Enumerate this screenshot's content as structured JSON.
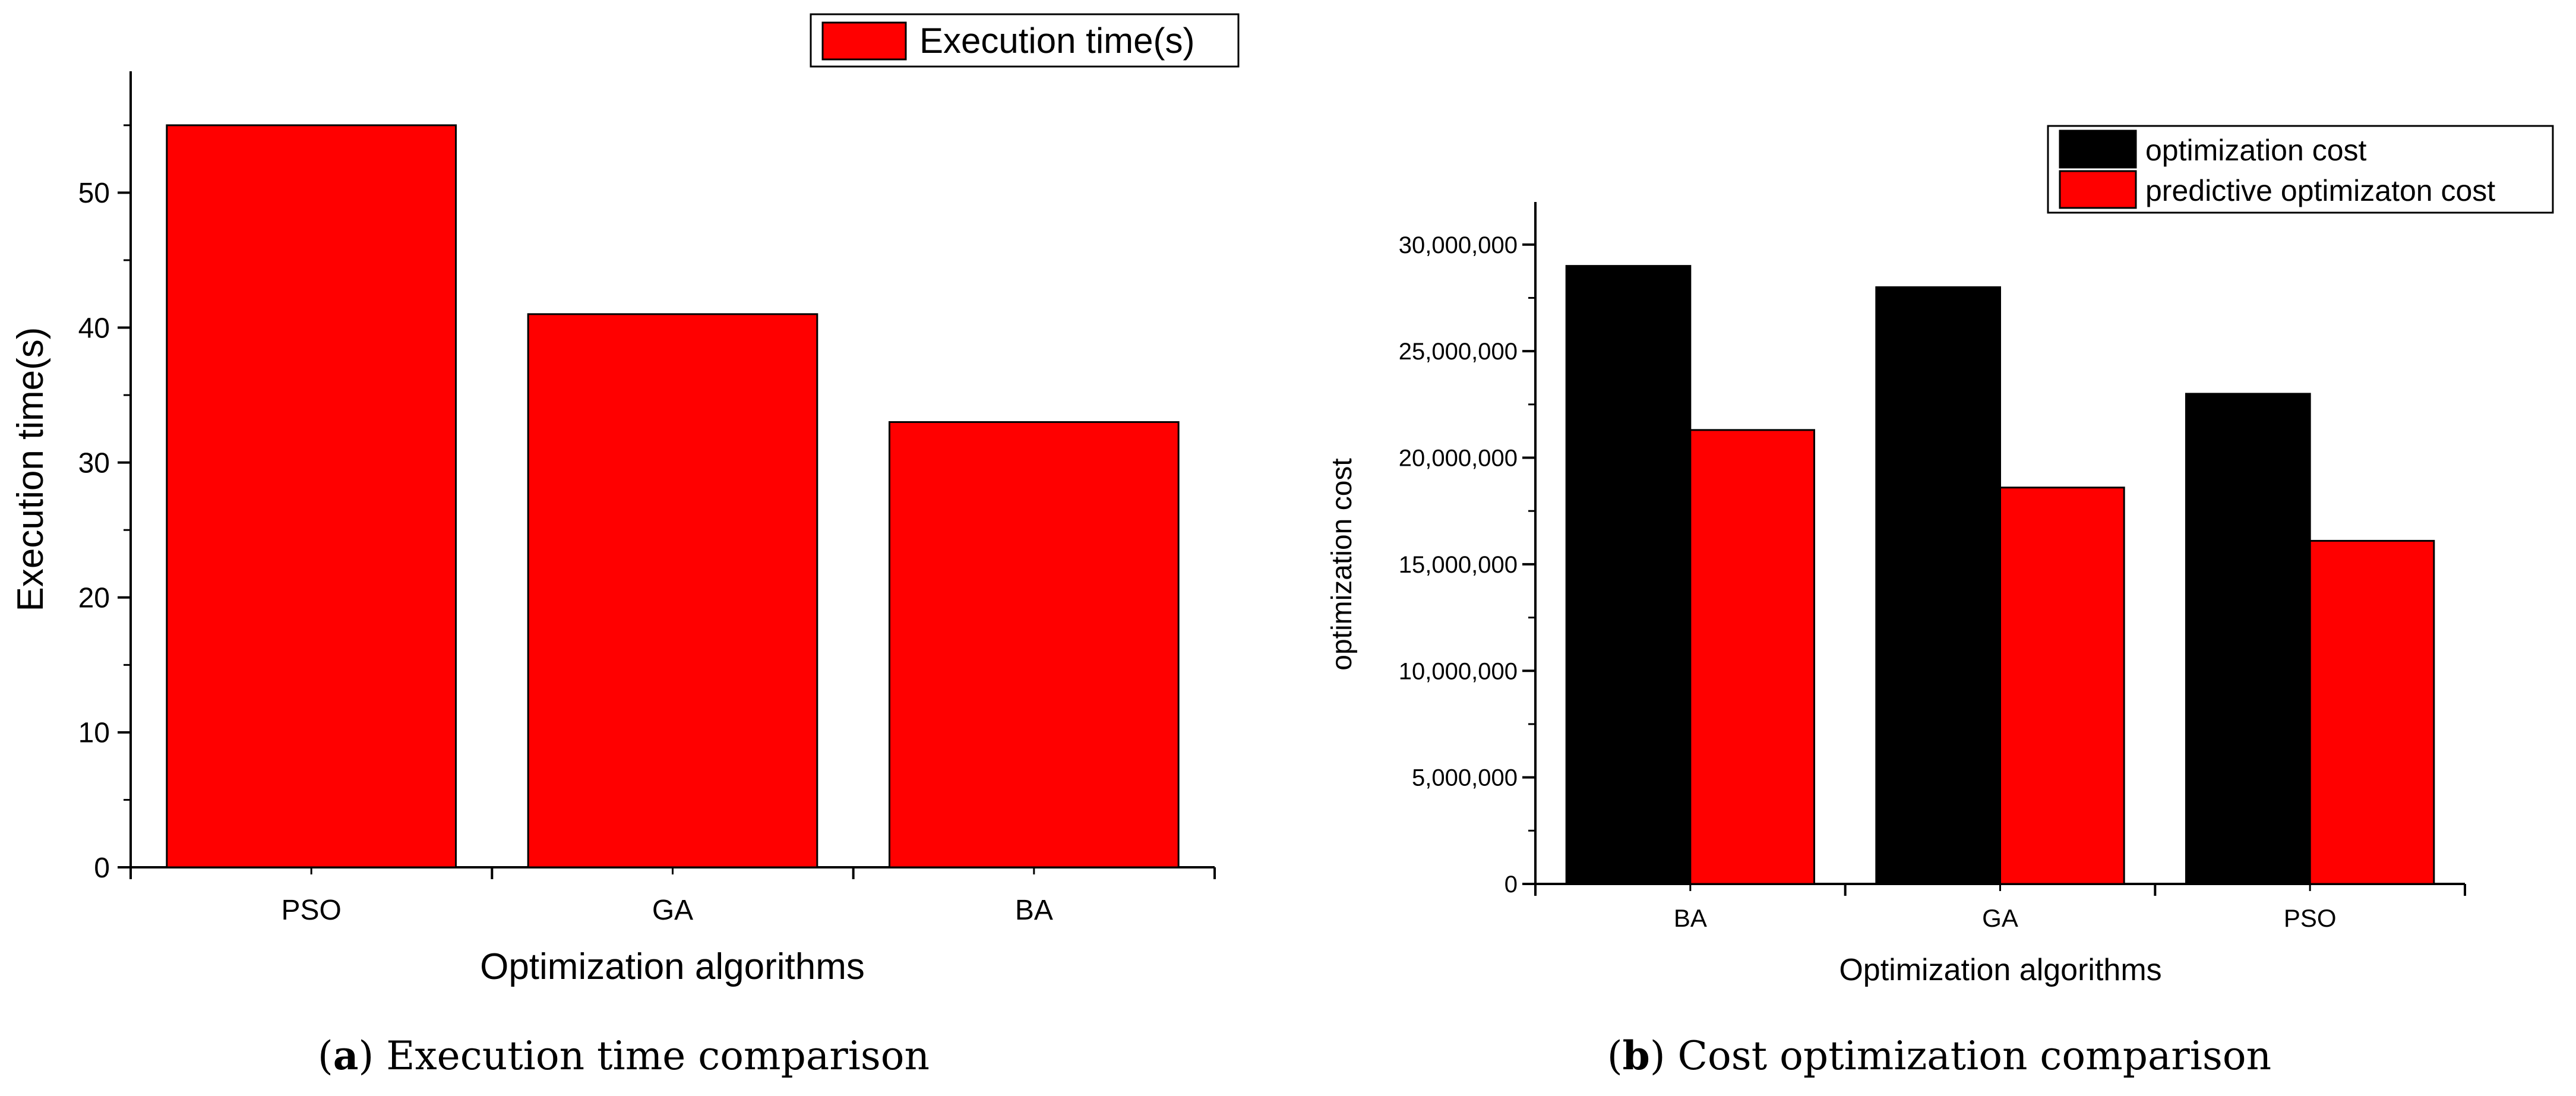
{
  "chart_data": [
    {
      "type": "bar",
      "caption_letter": "a",
      "caption_text": " Execution time comparison",
      "xlabel": "Optimization algorithms",
      "ylabel": "Execution time(s)",
      "ylim": [
        0,
        59
      ],
      "yticks": [
        0,
        10,
        20,
        30,
        40,
        50
      ],
      "ytick_labels": [
        "0",
        "10",
        "20",
        "30",
        "40",
        "50"
      ],
      "categories": [
        "PSO",
        "GA",
        "BA"
      ],
      "series": [
        {
          "name": "Execution time(s)",
          "color": "#ff0000",
          "values": [
            55,
            41,
            33
          ]
        }
      ],
      "legend_position": "top-right",
      "grid": false
    },
    {
      "type": "bar",
      "caption_letter": "b",
      "caption_text": " Cost optimization comparison",
      "xlabel": "Optimization algorithms",
      "ylabel": "optimization cost",
      "ylim": [
        0,
        32000000
      ],
      "yticks": [
        0,
        5000000,
        10000000,
        15000000,
        20000000,
        25000000,
        30000000
      ],
      "ytick_labels": [
        "0",
        "5,000,000",
        "10,000,000",
        "15,000,000",
        "20,000,000",
        "25,000,000",
        "30,000,000"
      ],
      "categories": [
        "BA",
        "GA",
        "PSO"
      ],
      "series": [
        {
          "name": "optimization cost",
          "color": "#000000",
          "values": [
            29000000,
            28000000,
            23000000
          ]
        },
        {
          "name": "predictive optimizaton cost",
          "color": "#ff0000",
          "values": [
            21300000,
            18600000,
            16100000
          ]
        }
      ],
      "legend_position": "top-right",
      "grid": false
    }
  ]
}
